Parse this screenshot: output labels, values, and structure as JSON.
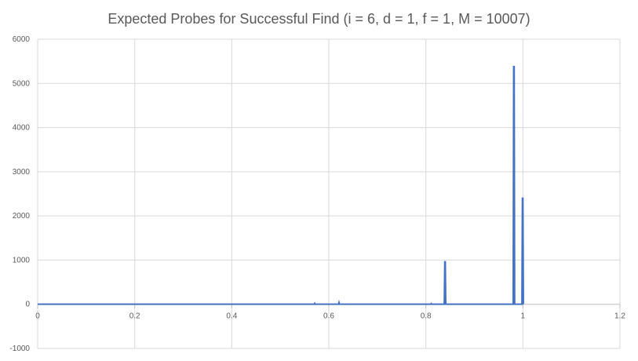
{
  "chart_data": {
    "type": "line",
    "title": "Expected  Probes for Successful Find (i = 6, d = 1, f = 1, M = 10007)",
    "xlabel": "",
    "ylabel": "",
    "xlim": [
      0,
      1.2
    ],
    "ylim": [
      -1000,
      6000
    ],
    "x_ticks": [
      "0",
      "0.2",
      "0.4",
      "0.6",
      "0.8",
      "1",
      "1.2"
    ],
    "y_ticks": [
      "-1000",
      "0",
      "1000",
      "2000",
      "3000",
      "4000",
      "5000",
      "6000"
    ],
    "grid": true,
    "legend": "none",
    "series": [
      {
        "color": "#4472c4",
        "x": [
          0,
          0.57,
          0.571,
          0.572,
          0.62,
          0.621,
          0.622,
          0.81,
          0.811,
          0.812,
          0.838,
          0.839,
          0.84,
          0.841,
          0.98,
          0.981,
          0.982,
          0.983,
          0.998,
          0.999,
          1.0,
          1.001
        ],
        "y": [
          1,
          1,
          20,
          1,
          1,
          40,
          1,
          1,
          15,
          1,
          1,
          960,
          960,
          1,
          1,
          5380,
          5380,
          1,
          1,
          2400,
          2400,
          1
        ]
      }
    ]
  }
}
